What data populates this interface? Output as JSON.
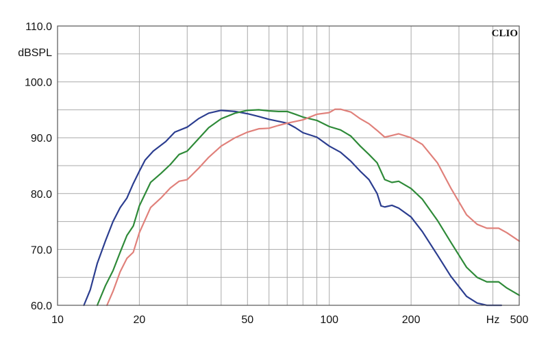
{
  "chart_data": {
    "type": "line",
    "brand": "CLIO",
    "ylabel": "dBSPL",
    "xlabel": "Hz",
    "x_scale": "log",
    "xlim": [
      10,
      500
    ],
    "ylim": [
      60,
      110
    ],
    "grid": true,
    "x_ticks": [
      {
        "value": 10,
        "label": "10"
      },
      {
        "value": 20,
        "label": "20"
      },
      {
        "value": 50,
        "label": "50"
      },
      {
        "value": 100,
        "label": "100"
      },
      {
        "value": 200,
        "label": "200"
      },
      {
        "value": 500,
        "label": "500"
      }
    ],
    "x_minor_grid": [
      30,
      40,
      60,
      70,
      80,
      90,
      300,
      400
    ],
    "x_unit_tick_value": 400,
    "y_ticks": [
      {
        "value": 60,
        "label": "60.0"
      },
      {
        "value": 70,
        "label": "70.0"
      },
      {
        "value": 80,
        "label": "80.0"
      },
      {
        "value": 90,
        "label": "90.0"
      },
      {
        "value": 100,
        "label": "100.0"
      },
      {
        "value": 110,
        "label": "110.0"
      }
    ],
    "y_minor_grid": [
      65,
      75,
      85,
      95,
      105
    ],
    "series": [
      {
        "color": "#2b3d8f",
        "points": [
          [
            12.5,
            60
          ],
          [
            13.2,
            62.8
          ],
          [
            14,
            67.5
          ],
          [
            15,
            71.5
          ],
          [
            16,
            75
          ],
          [
            17,
            77.5
          ],
          [
            18,
            79.2
          ],
          [
            19,
            81.8
          ],
          [
            20,
            84
          ],
          [
            21,
            86
          ],
          [
            22.5,
            87.6
          ],
          [
            25,
            89.3
          ],
          [
            27,
            91
          ],
          [
            30,
            91.9
          ],
          [
            33,
            93.4
          ],
          [
            36,
            94.4
          ],
          [
            40,
            94.9
          ],
          [
            45,
            94.7
          ],
          [
            50,
            94.3
          ],
          [
            55,
            93.8
          ],
          [
            60,
            93.3
          ],
          [
            70,
            92.6
          ],
          [
            75,
            91.8
          ],
          [
            80,
            90.9
          ],
          [
            90,
            90.1
          ],
          [
            100,
            88.5
          ],
          [
            110,
            87.4
          ],
          [
            120,
            85.8
          ],
          [
            130,
            84
          ],
          [
            140,
            82.5
          ],
          [
            150,
            80
          ],
          [
            155,
            77.8
          ],
          [
            160,
            77.6
          ],
          [
            170,
            77.9
          ],
          [
            180,
            77.4
          ],
          [
            200,
            75.8
          ],
          [
            220,
            73.2
          ],
          [
            250,
            69
          ],
          [
            280,
            65.2
          ],
          [
            320,
            61.6
          ],
          [
            350,
            60.4
          ],
          [
            380,
            60
          ],
          [
            430,
            60
          ]
        ]
      },
      {
        "color": "#2e8a38",
        "points": [
          [
            14,
            60
          ],
          [
            15,
            63.5
          ],
          [
            16,
            66.2
          ],
          [
            17,
            69.5
          ],
          [
            18,
            72.5
          ],
          [
            19,
            74.2
          ],
          [
            20,
            77.8
          ],
          [
            22,
            82
          ],
          [
            24,
            83.6
          ],
          [
            26,
            85.2
          ],
          [
            28,
            87
          ],
          [
            30,
            87.6
          ],
          [
            33,
            89.8
          ],
          [
            36,
            91.8
          ],
          [
            40,
            93.4
          ],
          [
            45,
            94.4
          ],
          [
            50,
            94.9
          ],
          [
            55,
            95
          ],
          [
            60,
            94.8
          ],
          [
            65,
            94.7
          ],
          [
            70,
            94.7
          ],
          [
            75,
            94.2
          ],
          [
            80,
            93.7
          ],
          [
            90,
            93.1
          ],
          [
            100,
            92
          ],
          [
            110,
            91.4
          ],
          [
            120,
            90.3
          ],
          [
            130,
            88.5
          ],
          [
            140,
            87
          ],
          [
            150,
            85.5
          ],
          [
            160,
            82.5
          ],
          [
            170,
            82
          ],
          [
            180,
            82.2
          ],
          [
            200,
            80.9
          ],
          [
            220,
            79
          ],
          [
            250,
            75.2
          ],
          [
            280,
            71.3
          ],
          [
            320,
            66.8
          ],
          [
            350,
            65
          ],
          [
            380,
            64.2
          ],
          [
            420,
            64.2
          ],
          [
            450,
            63.1
          ],
          [
            500,
            61.8
          ]
        ]
      },
      {
        "color": "#e0807a",
        "points": [
          [
            15.2,
            60
          ],
          [
            16,
            62.5
          ],
          [
            17,
            66
          ],
          [
            18,
            68.4
          ],
          [
            19,
            69.5
          ],
          [
            20,
            73
          ],
          [
            22,
            77.5
          ],
          [
            24,
            79.2
          ],
          [
            26,
            81
          ],
          [
            28,
            82.2
          ],
          [
            30,
            82.5
          ],
          [
            33,
            84.5
          ],
          [
            36,
            86.5
          ],
          [
            40,
            88.5
          ],
          [
            45,
            90
          ],
          [
            50,
            91
          ],
          [
            55,
            91.6
          ],
          [
            60,
            91.7
          ],
          [
            65,
            92.2
          ],
          [
            70,
            92.6
          ],
          [
            80,
            93.2
          ],
          [
            90,
            94.2
          ],
          [
            100,
            94.5
          ],
          [
            105,
            95.1
          ],
          [
            110,
            95.1
          ],
          [
            120,
            94.6
          ],
          [
            130,
            93.4
          ],
          [
            140,
            92.5
          ],
          [
            150,
            91.3
          ],
          [
            160,
            90.1
          ],
          [
            170,
            90.4
          ],
          [
            180,
            90.7
          ],
          [
            200,
            90
          ],
          [
            220,
            88.8
          ],
          [
            250,
            85.5
          ],
          [
            280,
            81
          ],
          [
            320,
            76.2
          ],
          [
            350,
            74.5
          ],
          [
            380,
            73.8
          ],
          [
            420,
            73.8
          ],
          [
            450,
            73
          ],
          [
            500,
            71.5
          ]
        ]
      }
    ]
  }
}
